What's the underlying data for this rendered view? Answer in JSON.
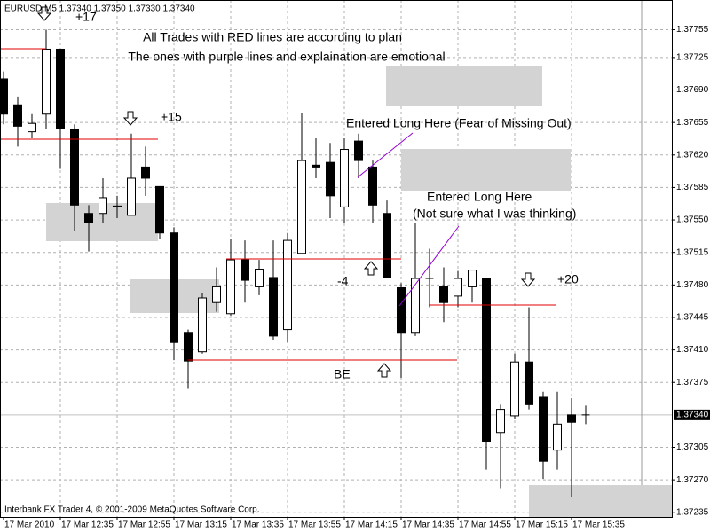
{
  "chart_data": {
    "type": "candlestick",
    "header": "EURUSD,M5  1.37340 1.37350 1.37330 1.37340",
    "footer": "Interbank FX Trader 4, © 2001-2009 MetaQuotes Software Corp.",
    "annotations": [
      "+17",
      "All Trades with RED lines are according to plan",
      "The ones with purple lines and explaination are emotional",
      "+15",
      "Entered Long Here (Fear of Missing Out)",
      "Entered Long Here",
      "(Not sure what I was thinking)",
      "-4",
      "BE",
      "+20"
    ],
    "categories": [
      "17 Mar 2010",
      null,
      null,
      null,
      "17 Mar 12:35",
      null,
      null,
      null,
      "17 Mar 12:55",
      null,
      null,
      null,
      "17 Mar 13:15",
      null,
      null,
      null,
      "17 Mar 13:35",
      null,
      null,
      null,
      "17 Mar 13:55",
      null,
      null,
      null,
      "17 Mar 14:15",
      null,
      null,
      null,
      "17 Mar 14:35",
      null,
      null,
      null,
      "17 Mar 14:55",
      null,
      null,
      null,
      "17 Mar 15:15",
      null,
      null,
      null,
      "17 Mar 15:35",
      null
    ],
    "open": [
      1.37702,
      1.37674,
      1.37645,
      1.37664,
      1.37734,
      1.37648,
      1.37557,
      1.37557,
      1.37564,
      1.37555,
      1.37607,
      1.37586,
      1.37536,
      1.37428,
      1.37408,
      1.37461,
      1.37449,
      1.37507,
      1.37478,
      1.37488,
      1.37432,
      1.37514,
      1.37609,
      1.37612,
      1.37564,
      1.37635,
      1.37607,
      1.37557,
      1.37477,
      1.37428,
      1.37487,
      1.37478,
      1.37468,
      1.37478,
      1.37487,
      1.37321,
      1.37339,
      1.37397,
      1.37359,
      1.37302,
      1.3734,
      1.3734
    ],
    "high": [
      1.3771,
      1.37683,
      1.37664,
      1.37755,
      1.37734,
      1.37653,
      1.37566,
      1.37595,
      1.37576,
      1.37643,
      1.37629,
      1.37586,
      1.37542,
      1.37432,
      1.37471,
      1.37499,
      1.3753,
      1.37528,
      1.37507,
      1.37528,
      1.37536,
      1.37665,
      1.37638,
      1.37633,
      1.37638,
      1.37643,
      1.37614,
      1.37571,
      1.37482,
      1.37547,
      1.37519,
      1.37499,
      1.37495,
      1.37496,
      1.37487,
      1.37351,
      1.37406,
      1.37456,
      1.37365,
      1.37365,
      1.37358,
      1.3735
    ],
    "low": [
      1.37653,
      1.37629,
      1.37638,
      1.37648,
      1.37605,
      1.37538,
      1.37516,
      1.37547,
      1.37552,
      1.37555,
      1.37576,
      1.3753,
      1.37399,
      1.37368,
      1.37406,
      1.37451,
      1.37447,
      1.37461,
      1.37469,
      1.37421,
      1.37418,
      1.37514,
      1.37595,
      1.37552,
      1.37547,
      1.37595,
      1.37547,
      1.37488,
      1.3738,
      1.37425,
      1.37456,
      1.3744,
      1.37456,
      1.37461,
      1.37281,
      1.37261,
      1.37336,
      1.37346,
      1.37271,
      1.37281,
      1.37252,
      1.3733
    ],
    "close": [
      1.37664,
      1.37651,
      1.37654,
      1.37734,
      1.37648,
      1.37566,
      1.37547,
      1.37574,
      1.37565,
      1.37595,
      1.37595,
      1.37536,
      1.37418,
      1.37398,
      1.37466,
      1.37478,
      1.37507,
      1.37485,
      1.37497,
      1.37425,
      1.37528,
      1.37614,
      1.37607,
      1.37576,
      1.37626,
      1.37614,
      1.37566,
      1.37488,
      1.37428,
      1.37487,
      1.37487,
      1.37461,
      1.37487,
      1.37496,
      1.37311,
      1.37346,
      1.37397,
      1.37351,
      1.3729,
      1.3733,
      1.37332,
      1.3734
    ],
    "up_color": "#ffffff",
    "down_color": "#000000",
    "ylim": [
      1.3723,
      1.37787
    ],
    "yticks": [
      {
        "value": 1.37755,
        "label": "1.37755"
      },
      {
        "value": 1.37725,
        "label": "1.37725"
      },
      {
        "value": 1.3769,
        "label": "1.37690"
      },
      {
        "value": 1.37655,
        "label": "1.37655"
      },
      {
        "value": 1.3762,
        "label": "1.37620"
      },
      {
        "value": 1.37585,
        "label": "1.37585"
      },
      {
        "value": 1.3755,
        "label": "1.37550"
      },
      {
        "value": 1.37515,
        "label": "1.37515"
      },
      {
        "value": 1.3748,
        "label": "1.37480"
      },
      {
        "value": 1.37445,
        "label": "1.37445"
      },
      {
        "value": 1.3741,
        "label": "1.37410"
      },
      {
        "value": 1.37375,
        "label": "1.37375"
      },
      {
        "value": 1.37305,
        "label": "1.37305"
      },
      {
        "value": 1.3727,
        "label": "1.37270"
      },
      {
        "value": 1.37235,
        "label": "1.37235"
      }
    ],
    "last_price": {
      "value": 1.3734,
      "label": "1.37340"
    },
    "grid": true
  }
}
